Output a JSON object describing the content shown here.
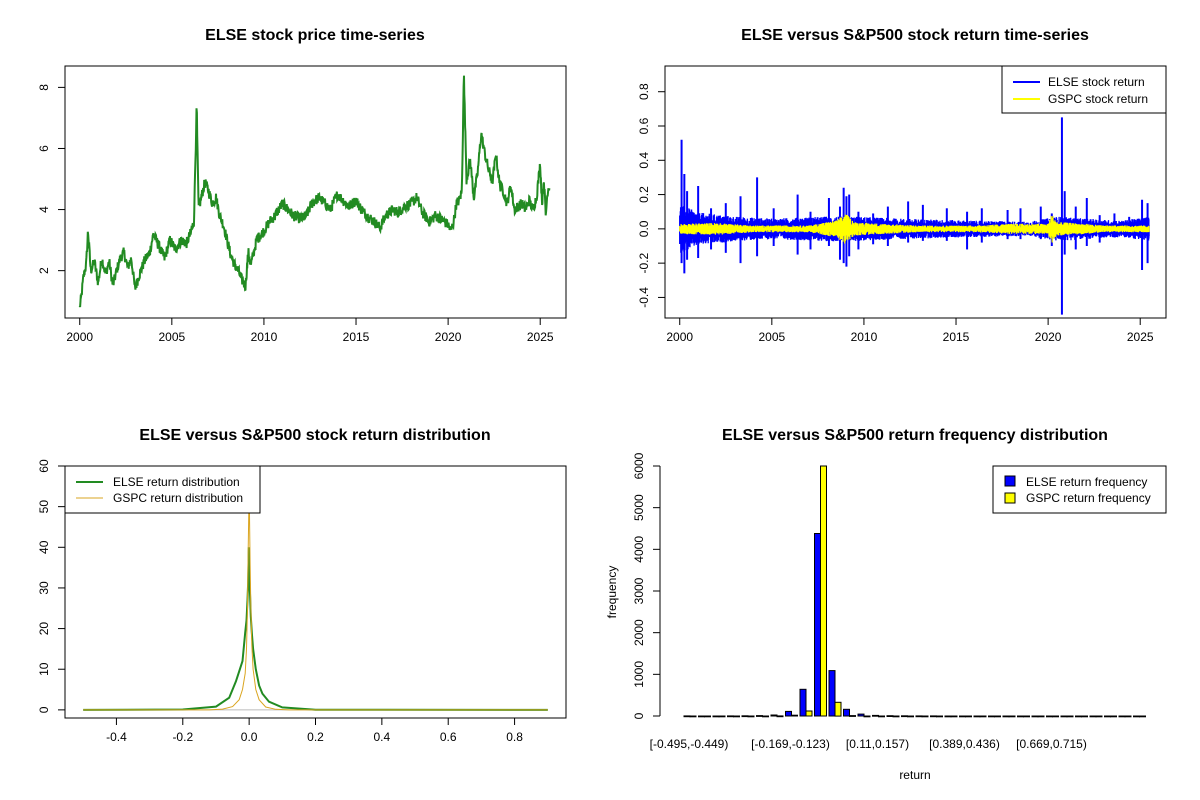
{
  "chart_data": [
    {
      "id": "price",
      "type": "line",
      "title": "ELSE stock price time-series",
      "xlabel": "",
      "ylabel": "",
      "xlim": [
        1999.2,
        2026.4
      ],
      "ylim": [
        0.45,
        8.7
      ],
      "x_ticks": [
        2000,
        2005,
        2010,
        2015,
        2020,
        2025
      ],
      "x_tick_labels": [
        "2000",
        "2005",
        "2010",
        "2015",
        "2020",
        "2025"
      ],
      "y_ticks": [
        2,
        4,
        6,
        8
      ],
      "y_tick_labels": [
        "2",
        "4",
        "6",
        "8"
      ],
      "color": "#228B22",
      "series": [
        {
          "name": "ELSE price",
          "x": [
            2000.0,
            2000.1,
            2000.2,
            2000.35,
            2000.45,
            2000.6,
            2000.8,
            2001.0,
            2001.2,
            2001.4,
            2001.6,
            2001.8,
            2002.0,
            2002.2,
            2002.4,
            2002.6,
            2002.8,
            2003.0,
            2003.2,
            2003.5,
            2003.8,
            2004.0,
            2004.3,
            2004.6,
            2004.9,
            2005.2,
            2005.5,
            2005.8,
            2006.0,
            2006.2,
            2006.35,
            2006.45,
            2006.6,
            2006.8,
            2007.0,
            2007.2,
            2007.4,
            2007.6,
            2007.8,
            2008.0,
            2008.2,
            2008.4,
            2008.6,
            2008.8,
            2009.0,
            2009.15,
            2009.3,
            2009.6,
            2010.0,
            2010.3,
            2010.6,
            2011.0,
            2011.3,
            2011.6,
            2012.0,
            2012.3,
            2012.6,
            2013.0,
            2013.3,
            2013.6,
            2014.0,
            2014.3,
            2014.6,
            2015.0,
            2015.3,
            2015.6,
            2016.0,
            2016.3,
            2016.6,
            2017.0,
            2017.3,
            2017.6,
            2018.0,
            2018.3,
            2018.6,
            2019.0,
            2019.3,
            2019.6,
            2020.0,
            2020.15,
            2020.3,
            2020.45,
            2020.6,
            2020.75,
            2020.85,
            2021.0,
            2021.2,
            2021.4,
            2021.6,
            2021.8,
            2022.0,
            2022.2,
            2022.4,
            2022.6,
            2022.8,
            2023.0,
            2023.2,
            2023.4,
            2023.6,
            2023.8,
            2024.0,
            2024.2,
            2024.4,
            2024.6,
            2024.8,
            2025.0,
            2025.1,
            2025.2,
            2025.3,
            2025.4,
            2025.5
          ],
          "y": [
            0.8,
            1.2,
            1.8,
            2.2,
            3.3,
            2.0,
            2.3,
            1.6,
            2.4,
            1.9,
            2.3,
            1.5,
            2.0,
            2.4,
            2.6,
            2.1,
            2.4,
            1.4,
            1.8,
            2.3,
            2.6,
            3.2,
            2.8,
            2.4,
            3.0,
            2.7,
            3.0,
            2.9,
            3.2,
            3.6,
            7.4,
            4.0,
            4.4,
            4.9,
            4.6,
            4.2,
            4.4,
            3.8,
            3.5,
            3.0,
            2.5,
            2.2,
            2.0,
            1.7,
            1.5,
            2.6,
            2.2,
            3.0,
            3.3,
            3.6,
            3.8,
            4.2,
            4.0,
            3.8,
            3.7,
            3.8,
            4.2,
            4.4,
            4.2,
            4.0,
            4.5,
            4.3,
            4.1,
            4.3,
            4.0,
            3.8,
            3.6,
            3.4,
            3.8,
            4.0,
            3.9,
            4.1,
            4.2,
            4.4,
            3.9,
            3.6,
            3.8,
            3.7,
            3.5,
            3.3,
            3.6,
            4.2,
            4.3,
            4.6,
            8.5,
            5.0,
            5.6,
            4.4,
            5.2,
            6.5,
            5.8,
            5.3,
            4.9,
            5.8,
            4.8,
            4.6,
            4.2,
            4.8,
            4.0,
            4.1,
            4.2,
            4.0,
            4.3,
            4.0,
            4.4,
            5.5,
            4.2,
            5.0,
            3.8,
            4.6,
            4.8
          ]
        }
      ]
    },
    {
      "id": "returns",
      "type": "line",
      "title": "ELSE versus S&P500 stock return time-series",
      "xlabel": "",
      "ylabel": "",
      "xlim": [
        1999.2,
        2026.4
      ],
      "ylim": [
        -0.52,
        0.95
      ],
      "x_ticks": [
        2000,
        2005,
        2010,
        2015,
        2020,
        2025
      ],
      "x_tick_labels": [
        "2000",
        "2005",
        "2010",
        "2015",
        "2020",
        "2025"
      ],
      "y_ticks": [
        -0.4,
        -0.2,
        0.0,
        0.2,
        0.4,
        0.6,
        0.8
      ],
      "y_tick_labels": [
        "-0.4",
        "-0.2",
        "0.0",
        "0.2",
        "0.4",
        "0.6",
        "0.8"
      ],
      "legend": [
        {
          "label": "ELSE stock return",
          "color": "#0000FF"
        },
        {
          "label": "GSPC stock return",
          "color": "#FFFF00"
        }
      ],
      "legend_position": "top-right",
      "spikes": {
        "x": [
          2000.1,
          2000.25,
          2000.4,
          2001.0,
          2001.7,
          2002.5,
          2003.3,
          2004.2,
          2005.1,
          2006.4,
          2007.1,
          2008.1,
          2008.7,
          2008.9,
          2009.05,
          2009.2,
          2009.7,
          2010.5,
          2011.3,
          2012.4,
          2013.2,
          2014.5,
          2015.6,
          2016.4,
          2017.8,
          2018.5,
          2019.6,
          2020.2,
          2020.75,
          2020.9,
          2021.5,
          2022.1,
          2022.8,
          2023.6,
          2024.4,
          2025.1,
          2025.4
        ],
        "y_up": [
          0.52,
          0.32,
          0.22,
          0.25,
          0.12,
          0.15,
          0.19,
          0.3,
          0.12,
          0.2,
          0.1,
          0.18,
          0.13,
          0.24,
          0.19,
          0.2,
          0.1,
          0.09,
          0.13,
          0.16,
          0.14,
          0.12,
          0.1,
          0.12,
          0.11,
          0.12,
          0.13,
          0.09,
          0.65,
          0.22,
          0.13,
          0.18,
          0.08,
          0.09,
          0.07,
          0.17,
          0.15
        ],
        "y_down": [
          -0.2,
          -0.26,
          -0.18,
          -0.17,
          -0.12,
          -0.14,
          -0.2,
          -0.16,
          -0.1,
          -0.15,
          -0.12,
          -0.1,
          -0.18,
          -0.2,
          -0.22,
          -0.16,
          -0.12,
          -0.09,
          -0.1,
          -0.08,
          -0.07,
          -0.07,
          -0.12,
          -0.08,
          -0.06,
          -0.06,
          -0.06,
          -0.1,
          -0.5,
          -0.15,
          -0.12,
          -0.1,
          -0.08,
          -0.05,
          -0.05,
          -0.24,
          -0.2
        ]
      },
      "gspc_band": {
        "x": [
          2000,
          2002,
          2004,
          2007,
          2008.5,
          2009.0,
          2009.5,
          2011,
          2013,
          2016,
          2018,
          2020.0,
          2020.2,
          2020.5,
          2022,
          2023,
          2025.5
        ],
        "amp": [
          0.03,
          0.035,
          0.02,
          0.02,
          0.05,
          0.09,
          0.04,
          0.03,
          0.02,
          0.02,
          0.03,
          0.03,
          0.09,
          0.04,
          0.03,
          0.02,
          0.02
        ]
      },
      "else_band": {
        "x": [
          2000,
          2001,
          2003,
          2005,
          2008,
          2009.5,
          2012,
          2016,
          2019,
          2020.5,
          2022,
          2024,
          2025.5
        ],
        "amp": [
          0.12,
          0.08,
          0.06,
          0.05,
          0.06,
          0.06,
          0.05,
          0.04,
          0.035,
          0.06,
          0.05,
          0.04,
          0.06
        ]
      }
    },
    {
      "id": "density",
      "type": "line",
      "title": "ELSE versus S&P500 stock return distribution",
      "xlabel": "",
      "ylabel": "",
      "xlim": [
        -0.555,
        0.955
      ],
      "ylim": [
        -2.0,
        60.0
      ],
      "x_ticks": [
        -0.4,
        -0.2,
        0.0,
        0.2,
        0.4,
        0.6,
        0.8
      ],
      "x_tick_labels": [
        "-0.4",
        "-0.2",
        "0.0",
        "0.2",
        "0.4",
        "0.6",
        "0.8"
      ],
      "y_ticks": [
        0,
        10,
        20,
        30,
        40,
        50,
        60
      ],
      "y_tick_labels": [
        "0",
        "10",
        "20",
        "30",
        "40",
        "50",
        "60"
      ],
      "legend": [
        {
          "label": "ELSE return distribution",
          "color": "#228B22"
        },
        {
          "label": "GSPC return distribution",
          "color": "#DAA520"
        }
      ],
      "legend_position": "top-left",
      "series": [
        {
          "name": "ELSE return distribution",
          "color": "#228B22",
          "x": [
            -0.5,
            -0.2,
            -0.1,
            -0.06,
            -0.04,
            -0.03,
            -0.02,
            -0.012,
            -0.008,
            -0.005,
            -0.003,
            -0.001,
            0.0,
            0.001,
            0.003,
            0.005,
            0.008,
            0.012,
            0.02,
            0.03,
            0.04,
            0.06,
            0.1,
            0.2,
            0.9
          ],
          "y": [
            0.0,
            0.1,
            0.8,
            3.0,
            7.0,
            9.5,
            12.0,
            19.0,
            22.0,
            27.0,
            31.0,
            40.0,
            38.0,
            32.0,
            28.0,
            23.0,
            19.0,
            15.0,
            10.0,
            6.0,
            4.0,
            2.0,
            0.6,
            0.05,
            0.0
          ]
        },
        {
          "name": "GSPC return distribution",
          "color": "#DAA520",
          "x": [
            -0.5,
            -0.12,
            -0.08,
            -0.05,
            -0.03,
            -0.02,
            -0.012,
            -0.008,
            -0.005,
            -0.003,
            -0.001,
            0.0,
            0.001,
            0.003,
            0.005,
            0.008,
            0.012,
            0.02,
            0.03,
            0.05,
            0.08,
            0.12,
            0.9
          ],
          "y": [
            0.0,
            0.0,
            0.2,
            0.8,
            2.5,
            5.0,
            9.0,
            15.0,
            25.0,
            38.0,
            49.0,
            58.0,
            48.0,
            36.0,
            26.0,
            16.0,
            10.0,
            5.0,
            2.5,
            0.7,
            0.15,
            0.0,
            0.0
          ]
        }
      ]
    },
    {
      "id": "frequency",
      "type": "bar",
      "title": "ELSE versus S&P500 return frequency distribution",
      "xlabel": "return",
      "ylabel": "frequency",
      "ylim": [
        0,
        6000
      ],
      "y_ticks": [
        0,
        1000,
        2000,
        3000,
        4000,
        5000,
        6000
      ],
      "y_tick_labels": [
        "0",
        "1000",
        "2000",
        "3000",
        "4000",
        "5000",
        "6000"
      ],
      "x_label_ticks": [
        {
          "group": 0,
          "label": "[-0.495,-0.449)"
        },
        {
          "group": 7,
          "label": "[-0.169,-0.123)"
        },
        {
          "group": 13,
          "label": "[0.11,0.157)"
        },
        {
          "group": 19,
          "label": "[0.389,0.436)"
        },
        {
          "group": 25,
          "label": "[0.669,0.715)"
        }
      ],
      "legend": [
        {
          "label": "ELSE return frequency",
          "color": "#0000FF"
        },
        {
          "label": "GSPC return frequency",
          "color": "#FFFF00"
        }
      ],
      "legend_position": "top-right",
      "series": [
        {
          "name": "ELSE return frequency",
          "color": "#0000FF",
          "values": [
            2,
            0,
            1,
            3,
            6,
            10,
            25,
            110,
            640,
            4380,
            1090,
            160,
            45,
            15,
            8,
            4,
            2,
            2,
            1,
            1,
            0,
            0,
            0,
            0,
            0,
            1,
            0,
            0,
            0,
            0,
            0,
            0
          ]
        },
        {
          "name": "GSPC return frequency",
          "color": "#FFFF00",
          "values": [
            0,
            0,
            0,
            0,
            0,
            0,
            3,
            20,
            120,
            6000,
            330,
            10,
            1,
            0,
            0,
            0,
            0,
            0,
            0,
            0,
            0,
            0,
            0,
            0,
            0,
            0,
            0,
            0,
            0,
            0,
            0,
            0
          ]
        }
      ]
    }
  ]
}
